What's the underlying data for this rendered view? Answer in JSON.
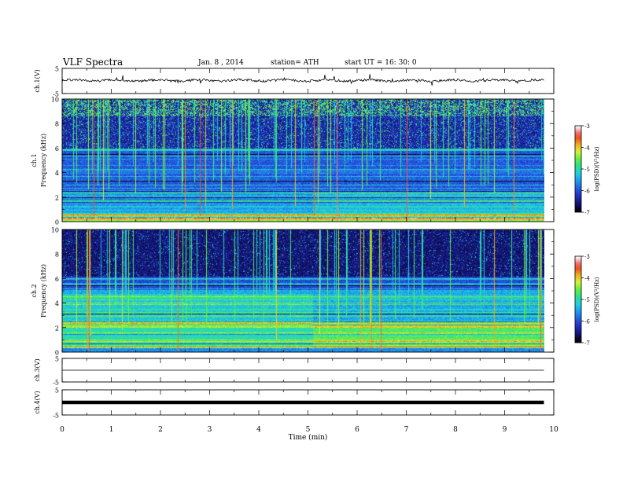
{
  "header": {
    "title": "VLF  Spectra",
    "date": "Jan.  8  , 2014",
    "station": "station= ATH",
    "start": "start  UT  =    16: 30: 0"
  },
  "colors": {
    "spectrogram_low": "#000000",
    "colorbar": [
      "#000000",
      "#1b1b8e",
      "#2a3bd0",
      "#1f8ff0",
      "#20d0e8",
      "#30e090",
      "#60f040",
      "#d8f040",
      "#f0b020",
      "#f05020",
      "#f06a6a",
      "#f6c8c8",
      "#ffffff"
    ]
  },
  "chart_data": [
    {
      "id": "ch1-wave",
      "type": "line",
      "ylabel": "ch.1(V)",
      "yticks": [
        "5",
        "-5"
      ],
      "ylim": [
        -5,
        5
      ],
      "xlim": [
        0,
        10
      ],
      "description_level": 0.2
    },
    {
      "id": "ch1-spec",
      "type": "heatmap",
      "ylabel": "ch.1\nFrequency  (kHz)",
      "ylabel_top": "ch.1",
      "ylabel_bottom": "Frequency  (kHz)",
      "yticks": [
        "0",
        "2",
        "4",
        "6",
        "8",
        "10"
      ],
      "ylim": [
        0,
        10
      ],
      "xlim": [
        0,
        10
      ],
      "colorbar": {
        "ticks": [
          "-3",
          "-4",
          "-5",
          "-6",
          "-7"
        ],
        "range": [
          -7,
          -3
        ],
        "label": "log(PSD)(V²/Hz)"
      }
    },
    {
      "id": "ch2-spec",
      "type": "heatmap",
      "ylabel_top": "ch.2",
      "ylabel_bottom": "Frequency  (kHz)",
      "yticks": [
        "0",
        "2",
        "4",
        "6",
        "8",
        "10"
      ],
      "ylim": [
        0,
        10
      ],
      "xlim": [
        0,
        10
      ],
      "colorbar": {
        "ticks": [
          "-3",
          "-4",
          "-5",
          "-6",
          "-7"
        ],
        "range": [
          -7,
          -3
        ],
        "label": "log(PSD)(V²/Hz)"
      }
    },
    {
      "id": "ch3-wave",
      "type": "line",
      "ylabel": "ch.3(V)",
      "yticks": [
        "5",
        "-5"
      ],
      "ylim": [
        -5,
        5
      ],
      "xlim": [
        0,
        10
      ],
      "level": 0
    },
    {
      "id": "ch4-wave",
      "type": "line",
      "ylabel": "ch.4(V)",
      "yticks": [
        "5",
        "-5"
      ],
      "ylim": [
        -5,
        5
      ],
      "xlim": [
        0,
        10
      ],
      "level": 0
    }
  ],
  "xaxis": {
    "label": "Time  (min)",
    "ticks": [
      "0",
      "1",
      "2",
      "3",
      "4",
      "5",
      "6",
      "7",
      "8",
      "9",
      "10"
    ],
    "range": [
      0,
      10
    ],
    "data_end": 9.8
  }
}
